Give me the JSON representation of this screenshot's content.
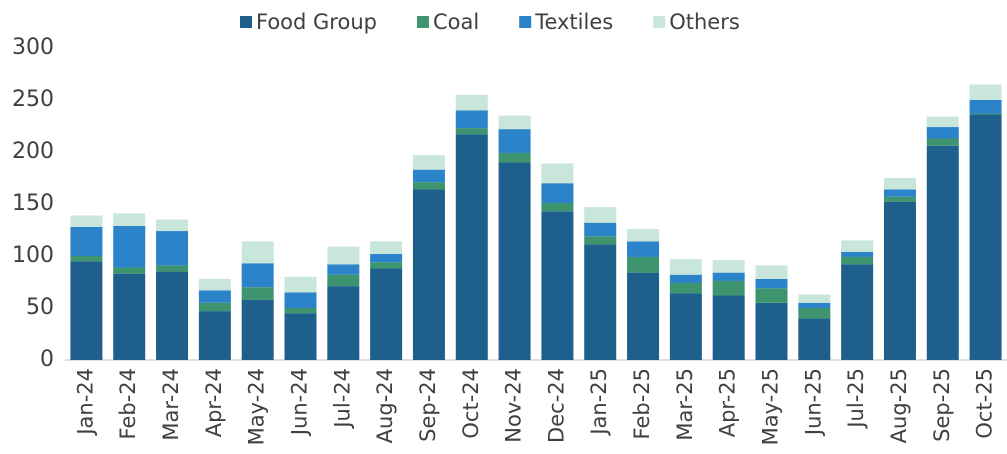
{
  "chart_data": {
    "type": "stacked_bar",
    "categories": [
      "Jan-24",
      "Feb-24",
      "Mar-24",
      "Apr-24",
      "May-24",
      "Jun-24",
      "Jul-24",
      "Aug-24",
      "Sep-24",
      "Oct-24",
      "Nov-24",
      "Dec-24",
      "Jan-25",
      "Feb-25",
      "Mar-25",
      "Apr-25",
      "May-25",
      "Jun-25",
      "Jul-25",
      "Aug-25",
      "Sep-25",
      "Oct-25"
    ],
    "series": [
      {
        "name": "Food Group",
        "color": "#1f5f8b",
        "values": [
          95,
          83,
          85,
          47,
          58,
          45,
          71,
          88,
          164,
          217,
          190,
          143,
          111,
          84,
          64,
          62,
          55,
          40,
          92,
          152,
          206,
          236
        ]
      },
      {
        "name": "Coal",
        "color": "#3f9470",
        "values": [
          5,
          6,
          6,
          8,
          12,
          5,
          11,
          6,
          7,
          6,
          9,
          8,
          8,
          15,
          10,
          14,
          14,
          10,
          7,
          5,
          7,
          1
        ]
      },
      {
        "name": "Textiles",
        "color": "#2b84c9",
        "values": [
          28,
          40,
          33,
          12,
          23,
          15,
          10,
          8,
          12,
          17,
          23,
          19,
          13,
          15,
          8,
          8,
          9,
          5,
          5,
          7,
          11,
          13
        ]
      },
      {
        "name": "Others",
        "color": "#c8e6da",
        "values": [
          11,
          12,
          11,
          11,
          21,
          15,
          17,
          12,
          14,
          15,
          13,
          19,
          15,
          12,
          15,
          12,
          13,
          8,
          11,
          11,
          10,
          15
        ]
      }
    ],
    "ylim": [
      0,
      300
    ],
    "yticks": [
      0,
      50,
      100,
      150,
      200,
      250,
      300
    ],
    "grid": false
  }
}
